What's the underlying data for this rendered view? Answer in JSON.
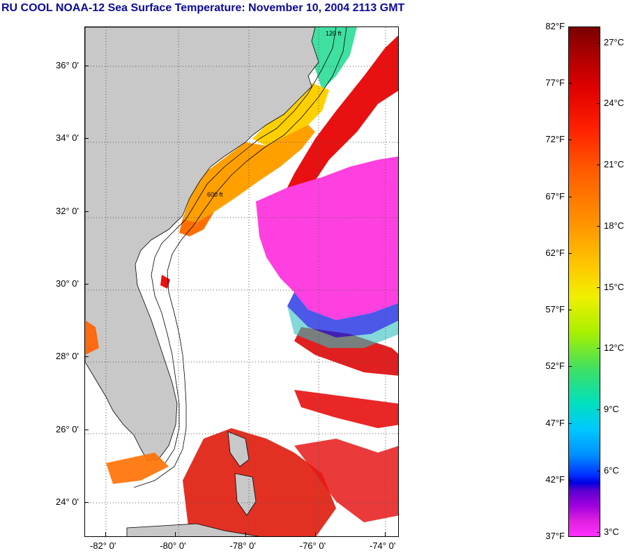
{
  "title": "RU COOL  NOAA-12  Sea Surface Temperature:  November 10, 2004 2113 GMT",
  "map": {
    "lat_labels": [
      {
        "label": "36° 0'",
        "lat": 36
      },
      {
        "label": "34° 0'",
        "lat": 34
      },
      {
        "label": "32° 0'",
        "lat": 32
      },
      {
        "label": "30° 0'",
        "lat": 30
      },
      {
        "label": "28° 0'",
        "lat": 28
      },
      {
        "label": "26° 0'",
        "lat": 26
      },
      {
        "label": "24° 0'",
        "lat": 24
      }
    ],
    "lon_labels": [
      {
        "label": "-82° 0'",
        "lon": -82
      },
      {
        "label": "-80° 0'",
        "lon": -80
      },
      {
        "label": "-78° 0'",
        "lon": -78
      },
      {
        "label": "-76° 0'",
        "lon": -76
      },
      {
        "label": "-74° 0'",
        "lon": -74
      }
    ],
    "contour_labels": [
      "120 ft",
      "600 ft"
    ],
    "colors": {
      "land": "#c8c8c8",
      "cloud": "#ffffff",
      "gulf_stream": "#e81010",
      "shelf_warm": "#ffa000",
      "shelf_cool": "#60e0a0",
      "cold": "#ff40e0"
    }
  },
  "colorbar": {
    "fahrenheit": [
      {
        "label": "82°F",
        "value": 82
      },
      {
        "label": "77°F",
        "value": 77
      },
      {
        "label": "72°F",
        "value": 72
      },
      {
        "label": "67°F",
        "value": 67
      },
      {
        "label": "62°F",
        "value": 62
      },
      {
        "label": "57°F",
        "value": 57
      },
      {
        "label": "52°F",
        "value": 52
      },
      {
        "label": "47°F",
        "value": 47
      },
      {
        "label": "42°F",
        "value": 42
      },
      {
        "label": "37°F",
        "value": 37
      }
    ],
    "celsius": [
      {
        "label": "27°C",
        "value": 27
      },
      {
        "label": "24°C",
        "value": 24
      },
      {
        "label": "21°C",
        "value": 21
      },
      {
        "label": "18°C",
        "value": 18
      },
      {
        "label": "15°C",
        "value": 15
      },
      {
        "label": "12°C",
        "value": 12
      },
      {
        "label": "9°C",
        "value": 9
      },
      {
        "label": "6°C",
        "value": 6
      },
      {
        "label": "3°C",
        "value": 3
      }
    ]
  }
}
